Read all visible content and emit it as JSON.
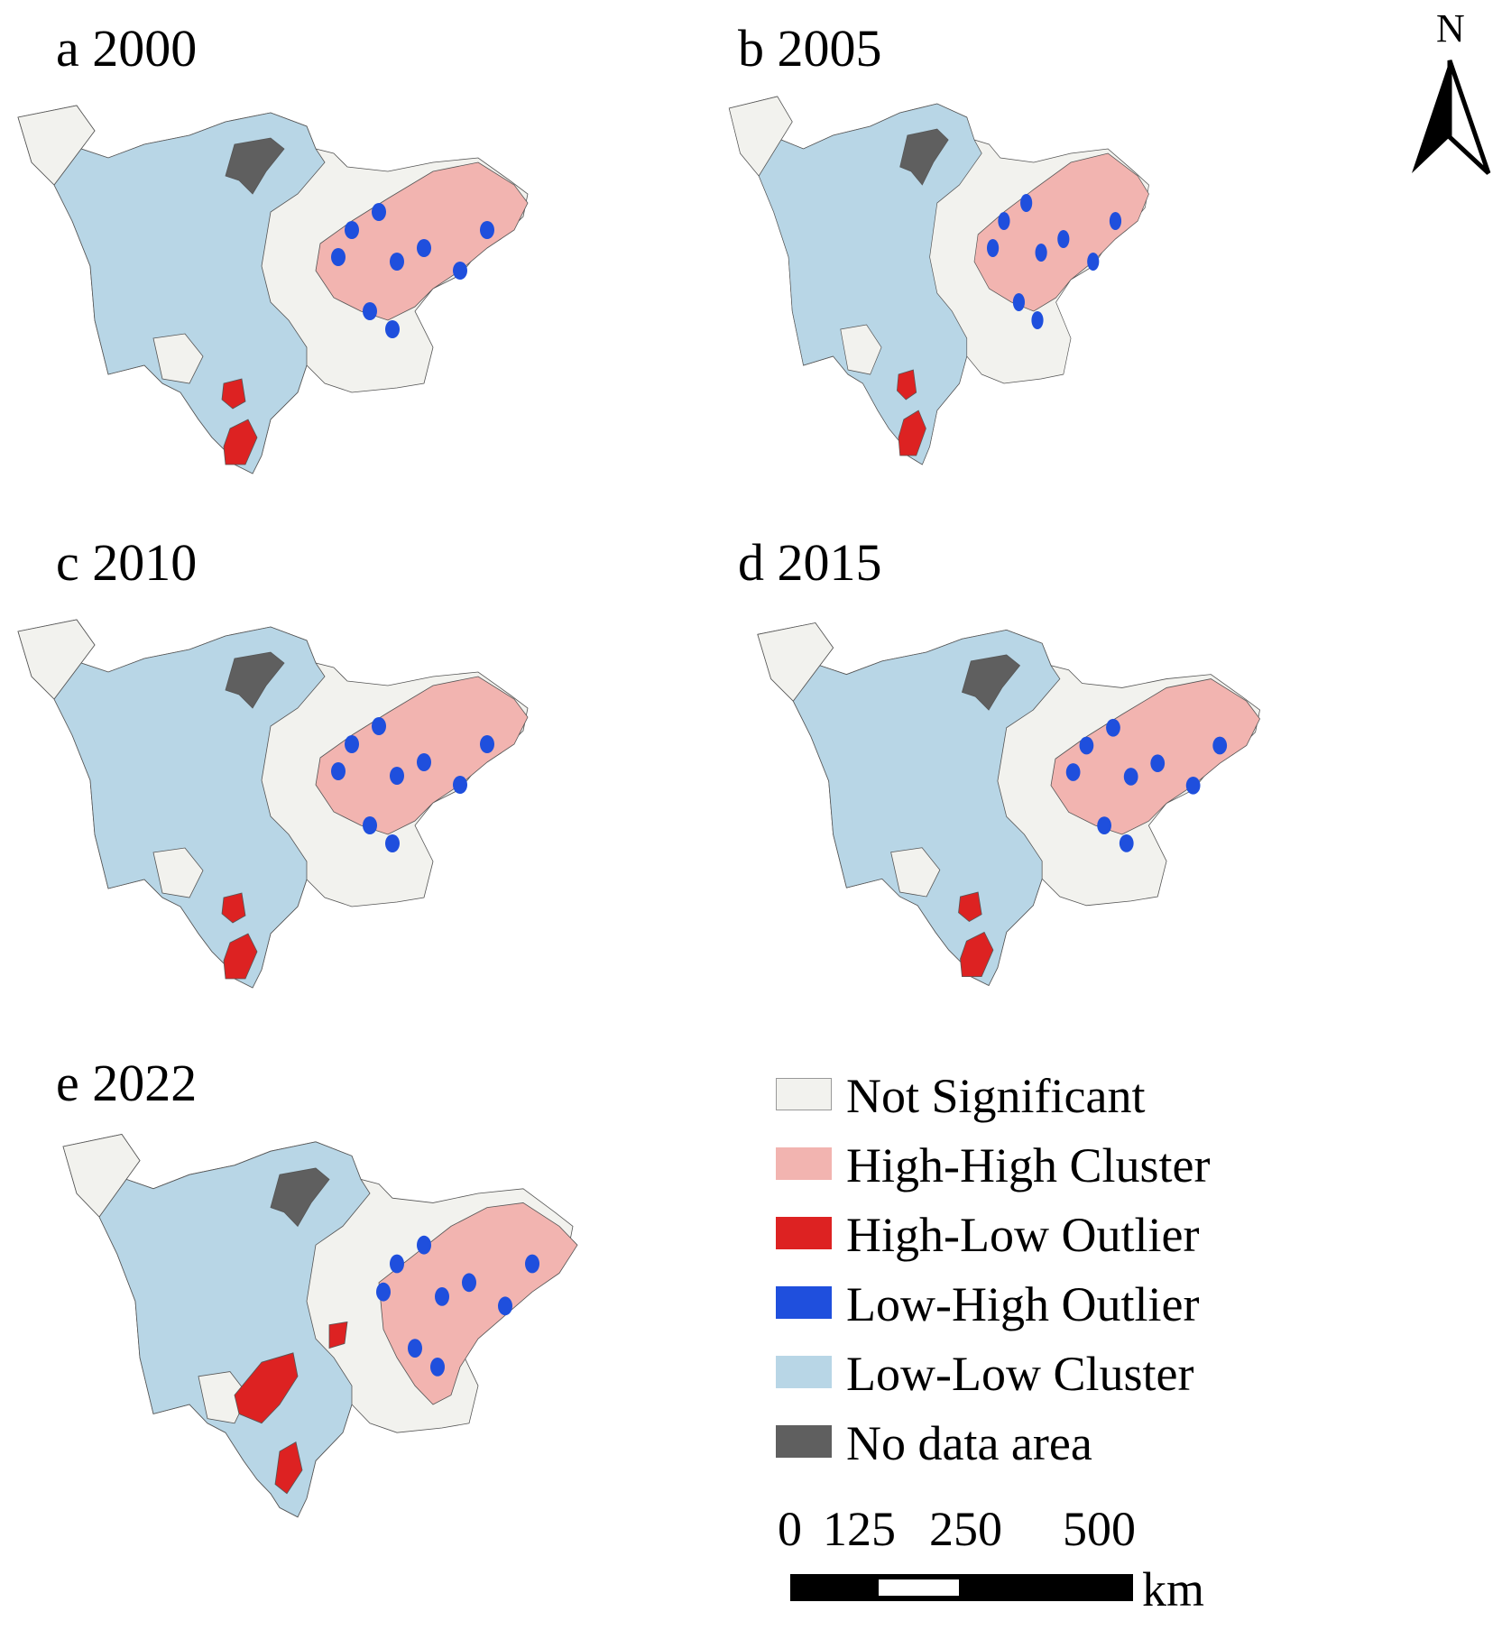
{
  "panels": [
    {
      "letter": "a",
      "year": "2000"
    },
    {
      "letter": "b",
      "year": "2005"
    },
    {
      "letter": "c",
      "year": "2010"
    },
    {
      "letter": "d",
      "year": "2015"
    },
    {
      "letter": "e",
      "year": "2022"
    }
  ],
  "compass": {
    "label": "N"
  },
  "legend": [
    {
      "label": "Not Significant",
      "color": "#f2f2ee"
    },
    {
      "label": "High-High Cluster",
      "color": "#f2b4b0"
    },
    {
      "label": "High-Low Outlier",
      "color": "#dd2222"
    },
    {
      "label": "Low-High Outlier",
      "color": "#1f4fdd"
    },
    {
      "label": "Low-Low Cluster",
      "color": "#b8d6e6"
    },
    {
      "label": "No data area",
      "color": "#5f5f5f"
    }
  ],
  "scale": {
    "ticks": [
      "0",
      "125",
      "250",
      "500"
    ],
    "unit": "km"
  }
}
